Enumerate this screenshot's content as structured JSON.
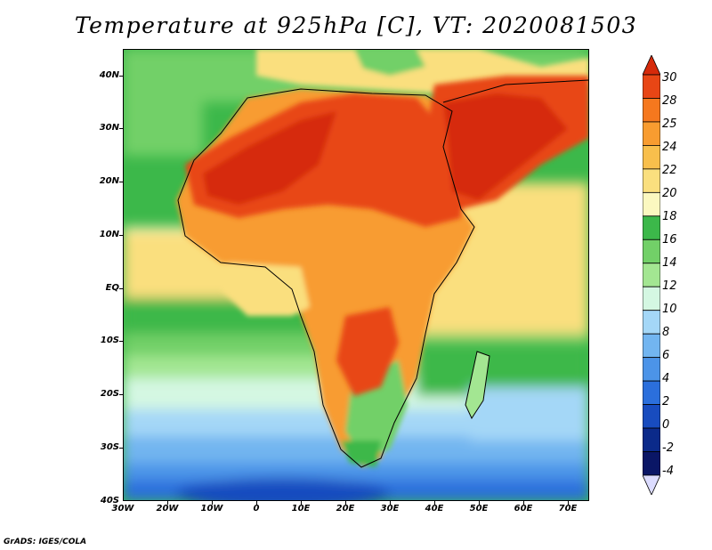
{
  "title": "Temperature at 925hPa [C], VT: 2020081503",
  "credit": "GrADS: IGES/COLA",
  "map": {
    "lon_range": [
      -30,
      75
    ],
    "lat_range": [
      -40,
      45
    ],
    "lat_labels": [
      "40N",
      "30N",
      "20N",
      "10N",
      "EQ",
      "10S",
      "20S",
      "30S",
      "40S"
    ],
    "lon_labels": [
      "30W",
      "20W",
      "10W",
      "0",
      "10E",
      "20E",
      "30E",
      "40E",
      "50E",
      "60E",
      "70E"
    ]
  },
  "colorbar": {
    "labels": [
      "30",
      "28",
      "25",
      "24",
      "22",
      "20",
      "18",
      "16",
      "14",
      "12",
      "10",
      "8",
      "6",
      "4",
      "2",
      "0",
      "-2",
      "-4"
    ],
    "colors": [
      "#d62a0a",
      "#e84615",
      "#f5781e",
      "#f89c30",
      "#f8bf4c",
      "#fadf7e",
      "#fbf8c0",
      "#3cb84a",
      "#72d068",
      "#a3e692",
      "#d4f7e2",
      "#a4d7f7",
      "#72b5f0",
      "#4c94e8",
      "#2b6fdc",
      "#184cbf",
      "#0b2a8a",
      "#0a1666",
      "#dcdcff"
    ]
  }
}
